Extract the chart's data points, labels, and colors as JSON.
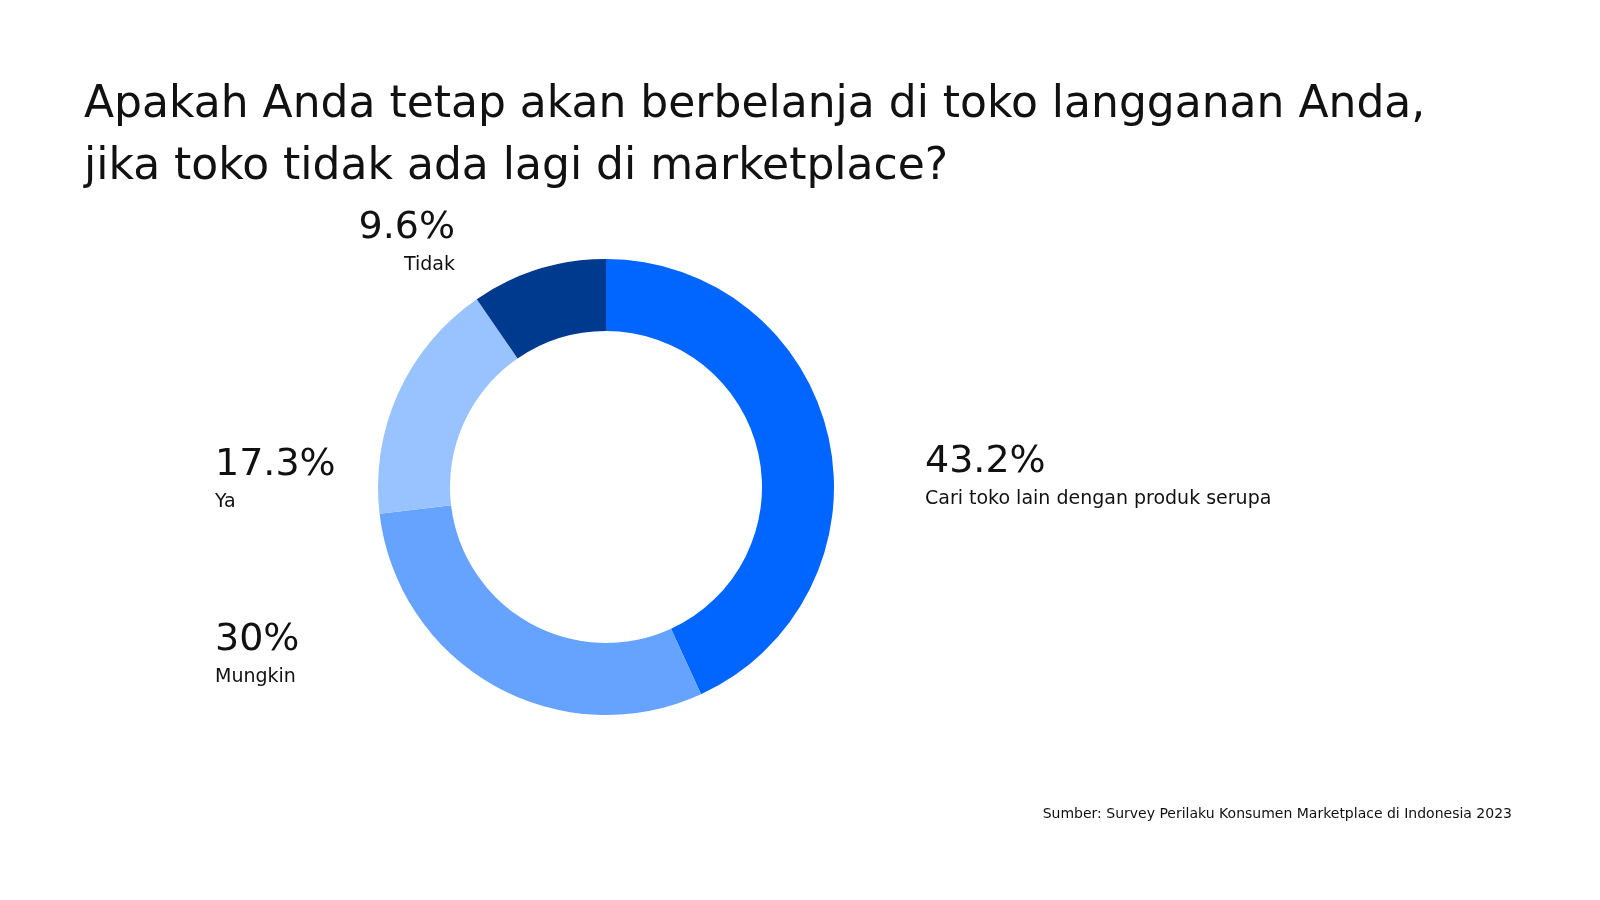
{
  "chart_data": {
    "type": "donut",
    "title": "Apakah Anda tetap akan berbelanja di toko langganan Anda, jika toko tidak ada lagi di marketplace?",
    "categories": [
      "Cari toko lain dengan produk serupa",
      "Mungkin",
      "Ya",
      "Tidak"
    ],
    "values": [
      43.2,
      30,
      17.3,
      9.6
    ],
    "value_labels": [
      "43.2%",
      "30%",
      "17.3%",
      "9.6%"
    ],
    "colors": [
      "#0066ff",
      "#66a3ff",
      "#99c3ff",
      "#003a8f"
    ],
    "annotations": [
      "Sumber: Survey Perilaku Konsumen Marketplace di Indonesia 2023"
    ],
    "legend": false
  }
}
